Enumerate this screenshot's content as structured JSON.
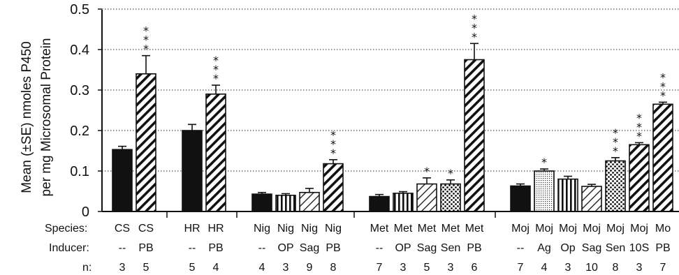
{
  "chart_data": {
    "type": "bar",
    "ylabel_lines": [
      "Mean (±SE) nmoles P450",
      "per mg Microsomal Protein"
    ],
    "ylim": [
      0,
      0.5
    ],
    "yticks": [
      "0",
      "0.1",
      "0.2",
      "0.3",
      "0.4",
      "0.5"
    ],
    "grid": "horizontal dotted",
    "row_labels": {
      "species": "Species:",
      "inducer": "Inducer:",
      "n": "n:"
    },
    "groups": [
      {
        "bars": [
          {
            "species": "CS",
            "inducer": "--",
            "n": "3",
            "value": 0.153,
            "se": 0.008,
            "pattern": "solid",
            "stars": ""
          },
          {
            "species": "CS",
            "inducer": "PB",
            "n": "5",
            "value": 0.34,
            "se": 0.045,
            "pattern": "diag",
            "stars": "***"
          }
        ]
      },
      {
        "bars": [
          {
            "species": "HR",
            "inducer": "--",
            "n": "5",
            "value": 0.2,
            "se": 0.015,
            "pattern": "solid",
            "stars": ""
          },
          {
            "species": "HR",
            "inducer": "PB",
            "n": "4",
            "value": 0.29,
            "se": 0.022,
            "pattern": "diag",
            "stars": "***"
          }
        ]
      },
      {
        "bars": [
          {
            "species": "Nig",
            "inducer": "--",
            "n": "4",
            "value": 0.043,
            "se": 0.004,
            "pattern": "solid",
            "stars": ""
          },
          {
            "species": "Nig",
            "inducer": "OP",
            "n": "3",
            "value": 0.04,
            "se": 0.004,
            "pattern": "vertical",
            "stars": ""
          },
          {
            "species": "Nig",
            "inducer": "Sag",
            "n": "9",
            "value": 0.047,
            "se": 0.01,
            "pattern": "diag-light",
            "stars": ""
          },
          {
            "species": "Nig",
            "inducer": "PB",
            "n": "8",
            "value": 0.118,
            "se": 0.01,
            "pattern": "diag",
            "stars": "***"
          }
        ]
      },
      {
        "bars": [
          {
            "species": "Met",
            "inducer": "--",
            "n": "7",
            "value": 0.037,
            "se": 0.005,
            "pattern": "solid",
            "stars": ""
          },
          {
            "species": "Met",
            "inducer": "OP",
            "n": "3",
            "value": 0.045,
            "se": 0.004,
            "pattern": "vertical",
            "stars": ""
          },
          {
            "species": "Met",
            "inducer": "Sag",
            "n": "5",
            "value": 0.068,
            "se": 0.015,
            "pattern": "diag-light",
            "stars": "*"
          },
          {
            "species": "Met",
            "inducer": "Sen",
            "n": "3",
            "value": 0.068,
            "se": 0.01,
            "pattern": "dots",
            "stars": "*"
          },
          {
            "species": "Met",
            "inducer": "PB",
            "n": "6",
            "value": 0.375,
            "se": 0.04,
            "pattern": "diag",
            "stars": "***"
          }
        ]
      },
      {
        "bars": [
          {
            "species": "Moj",
            "inducer": "--",
            "n": "7",
            "value": 0.063,
            "se": 0.005,
            "pattern": "solid",
            "stars": ""
          },
          {
            "species": "Moj",
            "inducer": "Ag",
            "n": "4",
            "value": 0.1,
            "se": 0.005,
            "pattern": "fine-dots",
            "stars": "*"
          },
          {
            "species": "Moj",
            "inducer": "Op",
            "n": "3",
            "value": 0.08,
            "se": 0.007,
            "pattern": "vertical",
            "stars": ""
          },
          {
            "species": "Moj",
            "inducer": "Sag",
            "n": "10",
            "value": 0.062,
            "se": 0.005,
            "pattern": "diag-light",
            "stars": ""
          },
          {
            "species": "Moj",
            "inducer": "Sen",
            "n": "8",
            "value": 0.125,
            "se": 0.008,
            "pattern": "dots",
            "stars": "***"
          },
          {
            "species": "Moj",
            "inducer": "10S",
            "n": "3",
            "value": 0.165,
            "se": 0.005,
            "pattern": "diag",
            "stars": "***"
          },
          {
            "species": "Mo",
            "inducer": "PB",
            "n": "7",
            "value": 0.265,
            "se": 0.005,
            "pattern": "diag",
            "stars": "***"
          }
        ]
      }
    ]
  }
}
